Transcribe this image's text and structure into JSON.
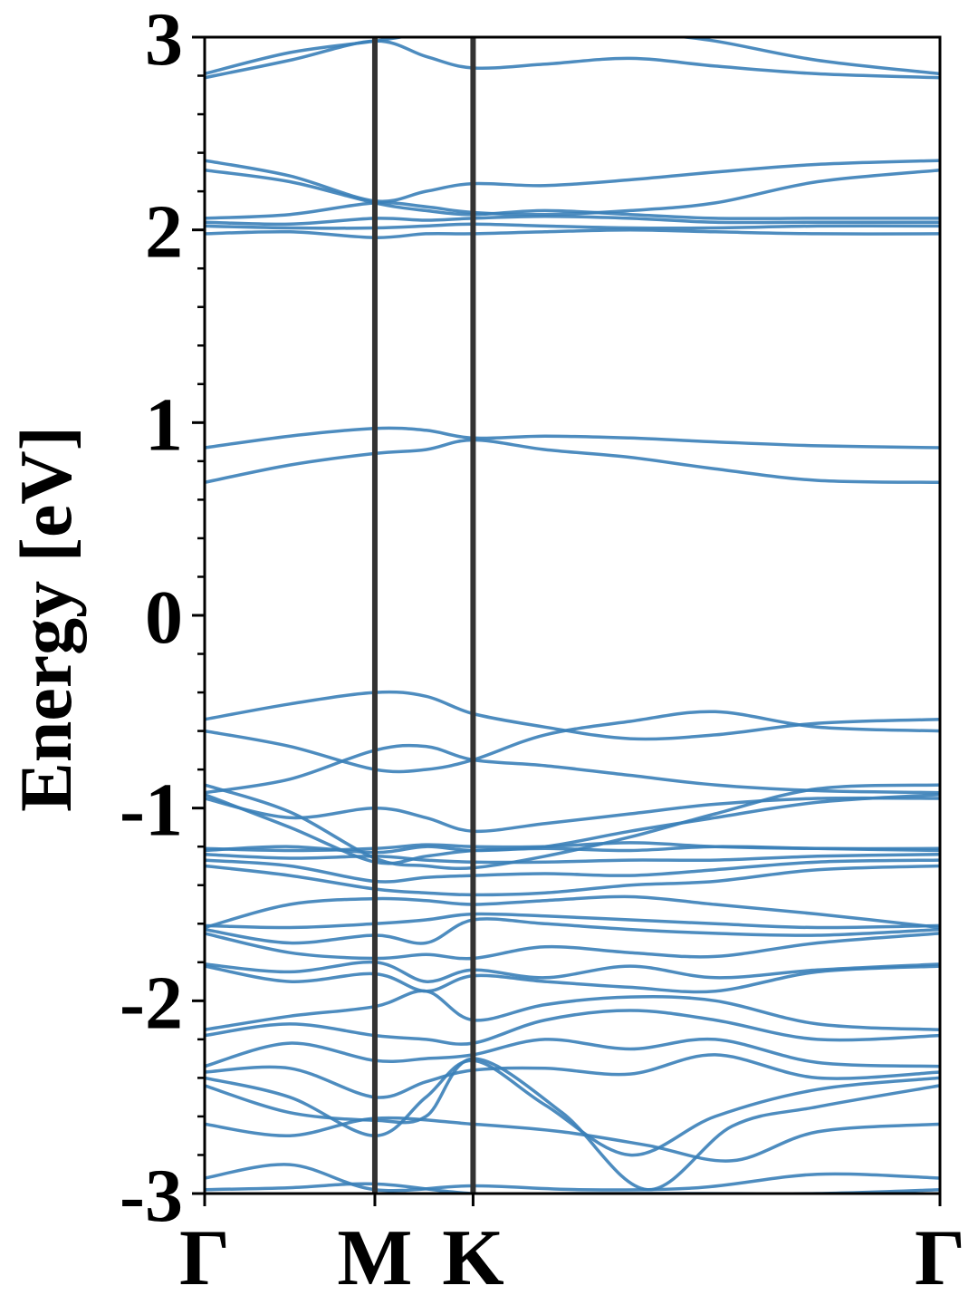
{
  "chart_data": {
    "type": "line",
    "title": "",
    "xlabel": "",
    "ylabel": "Energy [eV]",
    "ylim": [
      -3,
      3
    ],
    "y_ticks": [
      -3,
      -2,
      -1,
      0,
      1,
      2,
      3
    ],
    "y_minor_step": 0.2,
    "grid": false,
    "legend": "none",
    "line_color": "#3a7fb8",
    "kpath": {
      "labels": [
        "Γ",
        "M",
        "K",
        "Γ"
      ],
      "positions": [
        0,
        1,
        1.577,
        4.32
      ]
    },
    "high_symmetry_line_color": "#333333",
    "bands": [
      {
        "x": [
          0,
          0.5,
          1,
          1.577,
          2.2,
          2.9,
          3.6,
          4.32
        ],
        "y": [
          -2.98,
          -2.97,
          -2.95,
          -3.0,
          -3.0,
          -3.0,
          -3.0,
          -2.98
        ]
      },
      {
        "x": [
          0,
          0.5,
          1,
          1.577,
          2.2,
          2.9,
          3.6,
          4.32
        ],
        "y": [
          -2.92,
          -2.85,
          -2.98,
          -2.96,
          -2.98,
          -2.97,
          -2.9,
          -2.92
        ]
      },
      {
        "x": [
          0,
          0.5,
          1,
          1.577,
          2.1,
          2.6,
          3.1,
          3.6,
          4.32
        ],
        "y": [
          -2.64,
          -2.7,
          -2.61,
          -2.64,
          -2.68,
          -2.75,
          -2.83,
          -2.68,
          -2.64
        ]
      },
      {
        "x": [
          0,
          0.5,
          1,
          1.3,
          1.577,
          2.1,
          2.6,
          3.1,
          3.6,
          4.32
        ],
        "y": [
          -2.44,
          -2.58,
          -2.62,
          -2.6,
          -2.3,
          -2.58,
          -2.98,
          -2.65,
          -2.55,
          -2.44
        ]
      },
      {
        "x": [
          0,
          0.5,
          1,
          1.3,
          1.577,
          2.0,
          2.5,
          3.0,
          3.6,
          4.32
        ],
        "y": [
          -2.4,
          -2.5,
          -2.7,
          -2.5,
          -2.31,
          -2.54,
          -2.8,
          -2.6,
          -2.46,
          -2.4
        ]
      },
      {
        "x": [
          0,
          0.5,
          1,
          1.3,
          1.577,
          2.0,
          2.5,
          3.0,
          3.6,
          4.32
        ],
        "y": [
          -2.37,
          -2.35,
          -2.5,
          -2.42,
          -2.36,
          -2.35,
          -2.38,
          -2.28,
          -2.4,
          -2.37
        ]
      },
      {
        "x": [
          0,
          0.5,
          1,
          1.3,
          1.577,
          2.0,
          2.5,
          3.0,
          3.6,
          4.32
        ],
        "y": [
          -2.34,
          -2.22,
          -2.31,
          -2.3,
          -2.28,
          -2.2,
          -2.25,
          -2.2,
          -2.32,
          -2.34
        ]
      },
      {
        "x": [
          0,
          0.5,
          1,
          1.3,
          1.577,
          2.0,
          2.5,
          3.0,
          3.6,
          4.32
        ],
        "y": [
          -2.18,
          -2.12,
          -2.18,
          -2.2,
          -2.22,
          -2.1,
          -2.05,
          -2.1,
          -2.2,
          -2.18
        ]
      },
      {
        "x": [
          0,
          0.5,
          1,
          1.3,
          1.577,
          2.0,
          2.5,
          3.0,
          3.6,
          4.32
        ],
        "y": [
          -2.15,
          -2.08,
          -2.03,
          -1.95,
          -2.1,
          -2.02,
          -1.98,
          -2.0,
          -2.12,
          -2.15
        ]
      },
      {
        "x": [
          0,
          0.5,
          1,
          1.3,
          1.577,
          2.0,
          2.5,
          3.0,
          3.6,
          4.32
        ],
        "y": [
          -1.82,
          -1.9,
          -1.86,
          -1.95,
          -1.87,
          -1.9,
          -1.93,
          -1.95,
          -1.85,
          -1.82
        ]
      },
      {
        "x": [
          0,
          0.5,
          1,
          1.3,
          1.577,
          2.0,
          2.5,
          3.0,
          3.6,
          4.32
        ],
        "y": [
          -1.81,
          -1.85,
          -1.8,
          -1.9,
          -1.84,
          -1.88,
          -1.82,
          -1.88,
          -1.84,
          -1.81
        ]
      },
      {
        "x": [
          0,
          0.5,
          1,
          1.3,
          1.577,
          2.0,
          2.5,
          3.0,
          3.6,
          4.32
        ],
        "y": [
          -1.65,
          -1.75,
          -1.78,
          -1.76,
          -1.78,
          -1.72,
          -1.75,
          -1.77,
          -1.7,
          -1.65
        ]
      },
      {
        "x": [
          0,
          0.5,
          1,
          1.3,
          1.577,
          2.0,
          2.5,
          3.0,
          3.6,
          4.32
        ],
        "y": [
          -1.63,
          -1.7,
          -1.66,
          -1.7,
          -1.58,
          -1.6,
          -1.63,
          -1.65,
          -1.66,
          -1.63
        ]
      },
      {
        "x": [
          0,
          0.5,
          1,
          1.3,
          1.577,
          2.0,
          2.5,
          3.0,
          3.6,
          4.32
        ],
        "y": [
          -1.61,
          -1.62,
          -1.6,
          -1.58,
          -1.55,
          -1.56,
          -1.58,
          -1.6,
          -1.62,
          -1.61
        ]
      },
      {
        "x": [
          0,
          0.5,
          1,
          1.3,
          1.577,
          2.0,
          2.5,
          3.0,
          3.6,
          4.32
        ],
        "y": [
          -1.62,
          -1.5,
          -1.47,
          -1.48,
          -1.5,
          -1.48,
          -1.46,
          -1.5,
          -1.55,
          -1.62
        ]
      },
      {
        "x": [
          0,
          0.5,
          1,
          1.3,
          1.577,
          2.0,
          2.5,
          3.0,
          3.6,
          4.32
        ],
        "y": [
          -1.3,
          -1.35,
          -1.42,
          -1.44,
          -1.45,
          -1.44,
          -1.4,
          -1.38,
          -1.32,
          -1.3
        ]
      },
      {
        "x": [
          0,
          0.5,
          1,
          1.3,
          1.577,
          2.0,
          2.5,
          3.0,
          3.6,
          4.32
        ],
        "y": [
          -1.27,
          -1.3,
          -1.38,
          -1.36,
          -1.35,
          -1.34,
          -1.35,
          -1.32,
          -1.28,
          -1.27
        ]
      },
      {
        "x": [
          0,
          0.5,
          1,
          1.3,
          1.577,
          2.0,
          2.5,
          3.0,
          3.6,
          4.32
        ],
        "y": [
          -1.24,
          -1.26,
          -1.25,
          -1.27,
          -1.28,
          -1.28,
          -1.27,
          -1.27,
          -1.25,
          -1.24
        ]
      },
      {
        "x": [
          0,
          0.5,
          1,
          1.3,
          1.577,
          2.0,
          2.5,
          3.0,
          3.6,
          4.32
        ],
        "y": [
          -1.22,
          -1.2,
          -1.23,
          -1.2,
          -1.22,
          -1.21,
          -1.22,
          -1.2,
          -1.21,
          -1.22
        ]
      },
      {
        "x": [
          0,
          0.5,
          1,
          1.3,
          1.577,
          2.0,
          2.5,
          3.0,
          3.6,
          4.32
        ],
        "y": [
          -1.21,
          -1.22,
          -1.21,
          -1.19,
          -1.2,
          -1.2,
          -1.18,
          -1.2,
          -1.21,
          -1.21
        ]
      },
      {
        "x": [
          0,
          0.5,
          1,
          1.3,
          1.577,
          2.0,
          2.5,
          3.0,
          3.6,
          4.32
        ],
        "y": [
          -0.95,
          -1.05,
          -1.0,
          -1.05,
          -1.12,
          -1.08,
          -1.03,
          -0.98,
          -0.95,
          -0.95
        ]
      },
      {
        "x": [
          0,
          0.5,
          1,
          1.3,
          1.577,
          2.0,
          2.5,
          3.0,
          3.6,
          4.32
        ],
        "y": [
          -0.93,
          -1.1,
          -1.28,
          -1.25,
          -1.22,
          -1.2,
          -1.12,
          -1.05,
          -0.97,
          -0.93
        ]
      },
      {
        "x": [
          0,
          0.5,
          1,
          1.3,
          1.577,
          2.0,
          2.5,
          3.0,
          3.6,
          4.32
        ],
        "y": [
          -0.88,
          -1.02,
          -1.26,
          -1.3,
          -1.31,
          -1.25,
          -1.15,
          -1.03,
          -0.9,
          -0.88
        ]
      },
      {
        "x": [
          0,
          0.5,
          1,
          1.3,
          1.577,
          2.0,
          2.5,
          3.0,
          3.6,
          4.32
        ],
        "y": [
          -0.92,
          -0.85,
          -0.7,
          -0.68,
          -0.75,
          -0.78,
          -0.83,
          -0.88,
          -0.91,
          -0.92
        ]
      },
      {
        "x": [
          0,
          0.5,
          1,
          1.3,
          1.577,
          2.0,
          2.5,
          3.0,
          3.6,
          4.32
        ],
        "y": [
          -0.6,
          -0.68,
          -0.8,
          -0.8,
          -0.75,
          -0.62,
          -0.55,
          -0.5,
          -0.58,
          -0.6
        ]
      },
      {
        "x": [
          0,
          0.5,
          1,
          1.3,
          1.577,
          2.0,
          2.5,
          3.0,
          3.6,
          4.32
        ],
        "y": [
          -0.54,
          -0.46,
          -0.4,
          -0.42,
          -0.51,
          -0.58,
          -0.64,
          -0.62,
          -0.56,
          -0.54
        ]
      },
      {
        "x": [
          0,
          0.5,
          1,
          1.3,
          1.577,
          2.0,
          2.5,
          3.0,
          3.6,
          4.32
        ],
        "y": [
          0.69,
          0.78,
          0.84,
          0.86,
          0.91,
          0.86,
          0.82,
          0.76,
          0.7,
          0.69
        ]
      },
      {
        "x": [
          0,
          0.5,
          1,
          1.3,
          1.577,
          2.0,
          2.5,
          3.0,
          3.6,
          4.32
        ],
        "y": [
          0.87,
          0.93,
          0.97,
          0.96,
          0.92,
          0.93,
          0.92,
          0.9,
          0.88,
          0.87
        ]
      },
      {
        "x": [
          0,
          0.5,
          1,
          1.3,
          1.577,
          2.0,
          2.5,
          3.0,
          3.6,
          4.32
        ],
        "y": [
          1.98,
          1.99,
          1.96,
          1.98,
          1.98,
          1.99,
          2.0,
          1.99,
          1.98,
          1.98
        ]
      },
      {
        "x": [
          0,
          0.5,
          1,
          1.3,
          1.577,
          2.0,
          2.5,
          3.0,
          3.6,
          4.32
        ],
        "y": [
          2.02,
          2.01,
          2.01,
          2.02,
          2.03,
          2.02,
          2.01,
          2.01,
          2.02,
          2.02
        ]
      },
      {
        "x": [
          0,
          0.5,
          1,
          1.3,
          1.577,
          2.0,
          2.5,
          3.0,
          3.6,
          4.32
        ],
        "y": [
          2.04,
          2.03,
          2.06,
          2.05,
          2.06,
          2.07,
          2.06,
          2.04,
          2.04,
          2.04
        ]
      },
      {
        "x": [
          0,
          0.5,
          1,
          1.3,
          1.577,
          2.0,
          2.5,
          3.0,
          3.6,
          4.32
        ],
        "y": [
          2.06,
          2.08,
          2.14,
          2.12,
          2.09,
          2.08,
          2.1,
          2.14,
          2.25,
          2.31
        ]
      },
      {
        "x": [
          0,
          0.5,
          1,
          1.3,
          1.577,
          2.0,
          2.5,
          3.0,
          3.6,
          4.32
        ],
        "y": [
          2.31,
          2.25,
          2.14,
          2.1,
          2.08,
          2.1,
          2.08,
          2.06,
          2.06,
          2.06
        ]
      },
      {
        "x": [
          0,
          0.5,
          1,
          1.3,
          1.577,
          2.0,
          2.5,
          3.0,
          3.6,
          4.32
        ],
        "y": [
          2.36,
          2.28,
          2.15,
          2.2,
          2.24,
          2.23,
          2.26,
          2.3,
          2.34,
          2.36
        ]
      },
      {
        "x": [
          0,
          0.5,
          1,
          1.3,
          1.577,
          2.0,
          2.5,
          3.0,
          3.6,
          4.32
        ],
        "y": [
          2.79,
          2.88,
          2.98,
          2.9,
          2.84,
          2.86,
          2.89,
          2.85,
          2.81,
          2.79
        ]
      },
      {
        "x": [
          0,
          0.5,
          1,
          1.577,
          2.2,
          2.6,
          3.0,
          3.6,
          4.32
        ],
        "y": [
          2.81,
          2.92,
          2.98,
          3.05,
          3.05,
          3.02,
          2.98,
          2.88,
          2.81
        ]
      }
    ]
  }
}
